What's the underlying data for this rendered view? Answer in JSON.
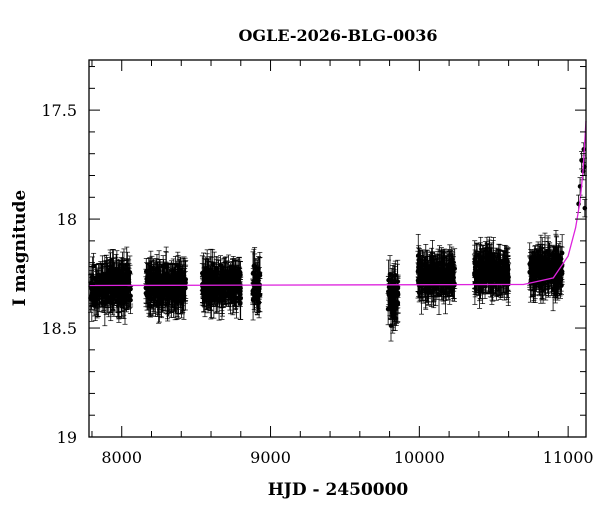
{
  "chart_data": {
    "type": "scatter",
    "title": "OGLE-2026-BLG-0036",
    "xlabel": "HJD - 2450000",
    "ylabel": "I magnitude",
    "xlim": [
      7780,
      11120
    ],
    "ylim": [
      19.0,
      17.27
    ],
    "y_inverted": true,
    "grid": false,
    "x_major_ticks": [
      8000,
      9000,
      10000,
      11000
    ],
    "x_major_tick_labels": [
      "8000",
      "9000",
      "10000",
      "11000"
    ],
    "x_minor_step": 200,
    "y_major_ticks": [
      17.5,
      18.0,
      18.5,
      19.0
    ],
    "y_major_tick_labels": [
      "17.5",
      "18",
      "18.5",
      "19"
    ],
    "y_minor_step": 0.1,
    "colors": {
      "points": "#000000",
      "model": "#dd22dd"
    },
    "observing_seasons": [
      {
        "x_start": 7790,
        "x_end": 8060,
        "mean_mag": 18.31,
        "scatter": 0.07,
        "typical_error": 0.07
      },
      {
        "x_start": 8160,
        "x_end": 8430,
        "mean_mag": 18.31,
        "scatter": 0.07,
        "typical_error": 0.07
      },
      {
        "x_start": 8540,
        "x_end": 8800,
        "mean_mag": 18.3,
        "scatter": 0.07,
        "typical_error": 0.07
      },
      {
        "x_start": 8880,
        "x_end": 8930,
        "mean_mag": 18.31,
        "scatter": 0.08,
        "typical_error": 0.07
      },
      {
        "x_start": 9790,
        "x_end": 9860,
        "mean_mag": 18.36,
        "scatter": 0.09,
        "typical_error": 0.07
      },
      {
        "x_start": 9990,
        "x_end": 10240,
        "mean_mag": 18.26,
        "scatter": 0.06,
        "typical_error": 0.07
      },
      {
        "x_start": 10370,
        "x_end": 10600,
        "mean_mag": 18.24,
        "scatter": 0.06,
        "typical_error": 0.07
      },
      {
        "x_start": 10740,
        "x_end": 10960,
        "mean_mag": 18.24,
        "scatter": 0.07,
        "typical_error": 0.07
      }
    ],
    "rise_points": [
      {
        "x": 11070,
        "mag": 17.93,
        "err": 0.04
      },
      {
        "x": 11080,
        "mag": 17.85,
        "err": 0.04
      },
      {
        "x": 11090,
        "mag": 17.73,
        "err": 0.04
      },
      {
        "x": 11100,
        "mag": 17.78,
        "err": 0.04
      },
      {
        "x": 11105,
        "mag": 17.68,
        "err": 0.03
      },
      {
        "x": 11110,
        "mag": 17.76,
        "err": 0.04
      },
      {
        "x": 11112,
        "mag": 17.95,
        "err": 0.04
      }
    ],
    "model": {
      "baseline_mag": 18.305,
      "curve": [
        [
          7780,
          18.305
        ],
        [
          10700,
          18.3
        ],
        [
          10900,
          18.27
        ],
        [
          11000,
          18.17
        ],
        [
          11050,
          18.04
        ],
        [
          11080,
          17.92
        ],
        [
          11100,
          17.78
        ],
        [
          11120,
          17.55
        ]
      ]
    }
  }
}
